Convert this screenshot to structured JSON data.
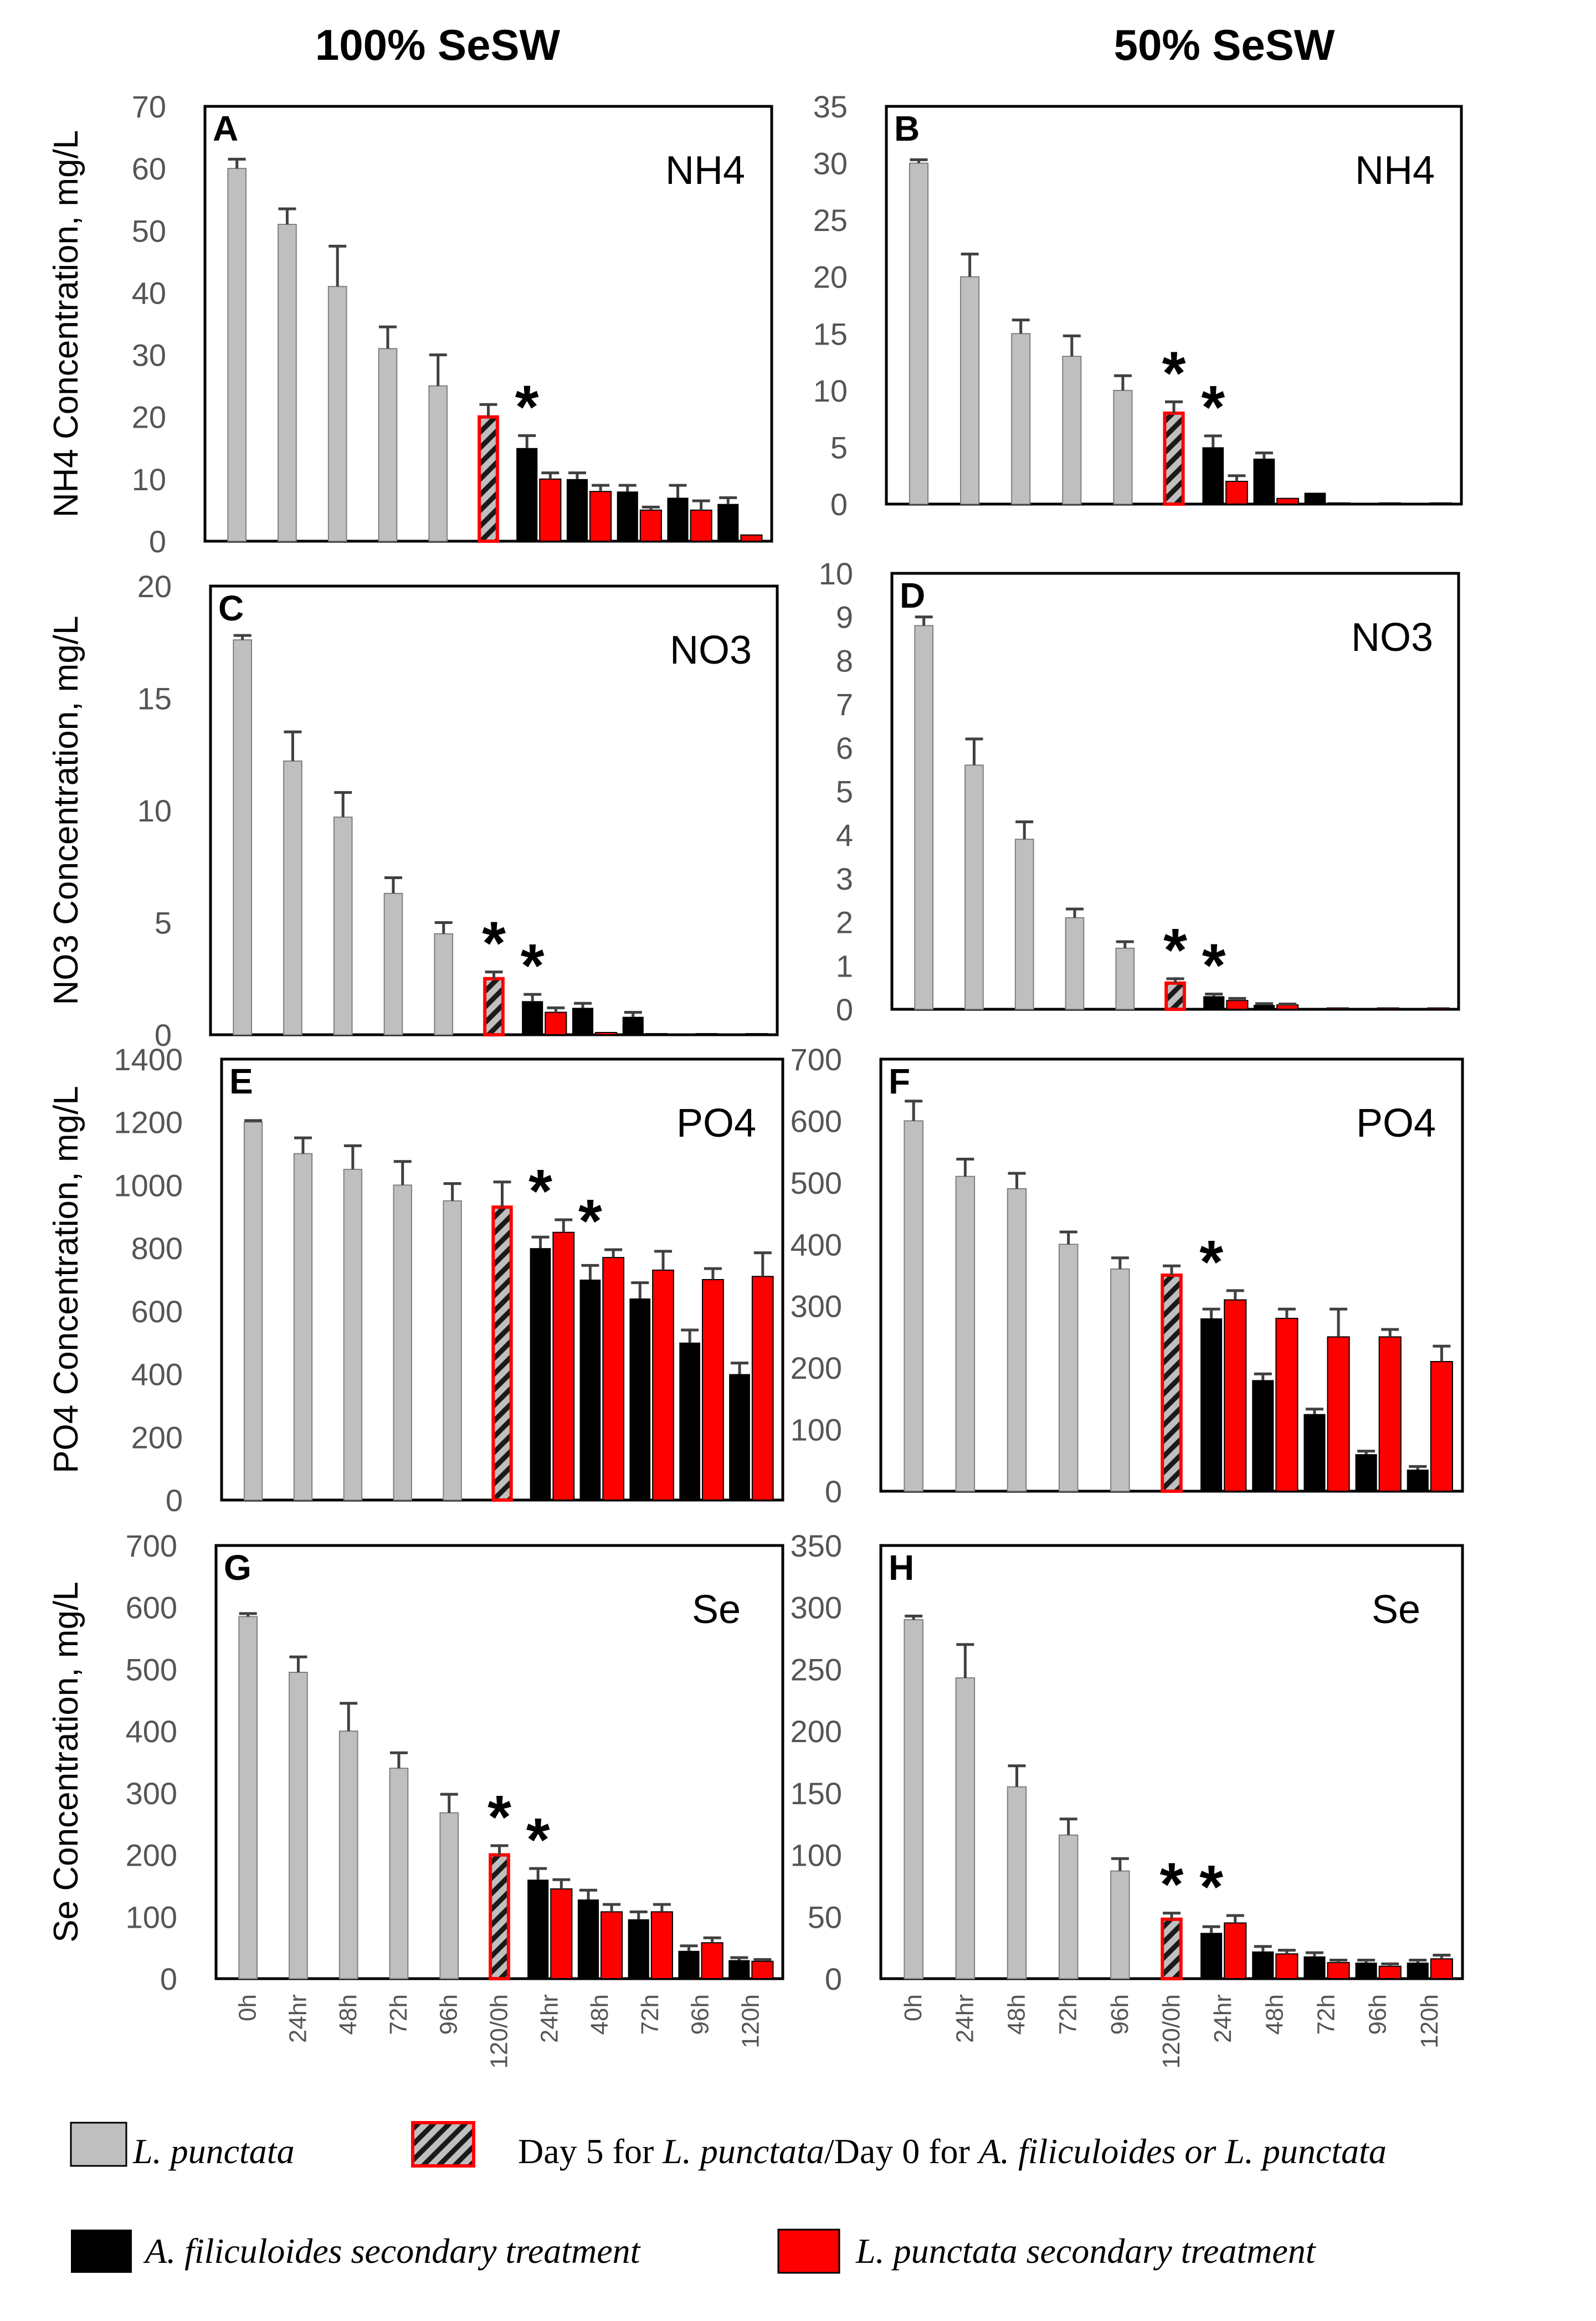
{
  "figure": {
    "column_titles": [
      "100% SeSW",
      "50% SeSW"
    ]
  },
  "legend": {
    "items": [
      {
        "key": "lp",
        "text_italic": "L. punctata",
        "text_rest": ""
      },
      {
        "key": "day5",
        "text_pre": "Day 5 for ",
        "text_italic1": "L. punctata",
        "text_mid": "/Day 0 for ",
        "text_italic2": "A. filiculoides or L. punctata"
      },
      {
        "key": "af",
        "text_italic": "A. filiculoides",
        "text_rest": " secondary treatment"
      },
      {
        "key": "lp2",
        "text_italic": "L. punctata",
        "text_rest": " secondary treatment"
      }
    ]
  },
  "colors": {
    "lp": "#bfbfbf",
    "af": "#000000",
    "lp2": "#ff0000",
    "day5_border": "#ff0000",
    "error_bar": "#404040"
  },
  "x_tick_labels": [
    "0h",
    "24hr",
    "48h",
    "72h",
    "96h",
    "120/0h",
    "24hr",
    "48h",
    "72h",
    "96h",
    "120h"
  ],
  "chart_data": [
    {
      "type": "bar",
      "panel": "A",
      "analyte": "NH4",
      "analyte_sub": "4",
      "analyte_base": "NH",
      "ylabel": "NH4 Concentration, mg/L",
      "ylim": [
        0,
        70
      ],
      "yticks": [
        0,
        10,
        20,
        30,
        40,
        50,
        60,
        70
      ],
      "primary": [
        {
          "v": 60,
          "e": 1.5
        },
        {
          "v": 51,
          "e": 2.5
        },
        {
          "v": 41,
          "e": 6.5
        },
        {
          "v": 31,
          "e": 3.5
        },
        {
          "v": 25,
          "e": 5
        }
      ],
      "day5": {
        "v": 20,
        "e": 2,
        "star": false
      },
      "secondary": [
        {
          "af": {
            "v": 15,
            "e": 2
          },
          "lp": {
            "v": 10,
            "e": 1
          },
          "star": true
        },
        {
          "af": {
            "v": 10,
            "e": 1
          },
          "lp": {
            "v": 8,
            "e": 1
          },
          "star": false
        },
        {
          "af": {
            "v": 8,
            "e": 1
          },
          "lp": {
            "v": 5,
            "e": 0.5
          },
          "star": false
        },
        {
          "af": {
            "v": 7,
            "e": 2
          },
          "lp": {
            "v": 5,
            "e": 1.5
          },
          "star": false
        },
        {
          "af": {
            "v": 6,
            "e": 1
          },
          "lp": {
            "v": 1,
            "e": 0
          },
          "star": false
        }
      ]
    },
    {
      "type": "bar",
      "panel": "B",
      "analyte": "NH4",
      "analyte_sub": "4",
      "analyte_base": "NH",
      "ylabel": "",
      "ylim": [
        0,
        35
      ],
      "yticks": [
        0,
        5,
        10,
        15,
        20,
        25,
        30,
        35
      ],
      "primary": [
        {
          "v": 30,
          "e": 0.3
        },
        {
          "v": 20,
          "e": 2
        },
        {
          "v": 15,
          "e": 1.2
        },
        {
          "v": 13,
          "e": 1.8
        },
        {
          "v": 10,
          "e": 1.3
        }
      ],
      "day5": {
        "v": 8,
        "e": 1,
        "star": true
      },
      "secondary": [
        {
          "af": {
            "v": 5,
            "e": 1
          },
          "lp": {
            "v": 2,
            "e": 0.5
          },
          "star": true
        },
        {
          "af": {
            "v": 4,
            "e": 0.5
          },
          "lp": {
            "v": 0.5,
            "e": 0
          },
          "star": false
        },
        {
          "af": {
            "v": 1,
            "e": 0
          },
          "lp": {
            "v": 0.1,
            "e": 0
          },
          "star": false
        },
        {
          "af": {
            "v": 0.1,
            "e": 0
          },
          "lp": {
            "v": 0.1,
            "e": 0
          },
          "star": false
        },
        {
          "af": {
            "v": 0.1,
            "e": 0
          },
          "lp": {
            "v": 0.1,
            "e": 0
          },
          "star": false
        }
      ]
    },
    {
      "type": "bar",
      "panel": "C",
      "analyte": "NO3",
      "analyte_sub": "3",
      "analyte_base": "NO",
      "ylabel": "NO3 Concentration, mg/L",
      "ylim": [
        0,
        20
      ],
      "yticks": [
        0,
        5,
        10,
        15,
        20
      ],
      "primary": [
        {
          "v": 17.6,
          "e": 0.2
        },
        {
          "v": 12.2,
          "e": 1.3
        },
        {
          "v": 9.7,
          "e": 1.1
        },
        {
          "v": 6.3,
          "e": 0.7
        },
        {
          "v": 4.5,
          "e": 0.5
        }
      ],
      "day5": {
        "v": 2.5,
        "e": 0.3,
        "star": true
      },
      "secondary": [
        {
          "af": {
            "v": 1.5,
            "e": 0.3
          },
          "lp": {
            "v": 1,
            "e": 0.2
          },
          "star": true
        },
        {
          "af": {
            "v": 1.2,
            "e": 0.2
          },
          "lp": {
            "v": 0.1,
            "e": 0
          },
          "star": false
        },
        {
          "af": {
            "v": 0.8,
            "e": 0.2
          },
          "lp": {
            "v": 0.05,
            "e": 0
          },
          "star": false
        },
        {
          "af": {
            "v": 0.05,
            "e": 0
          },
          "lp": {
            "v": 0.05,
            "e": 0
          },
          "star": false
        },
        {
          "af": {
            "v": 0.05,
            "e": 0
          },
          "lp": {
            "v": 0.05,
            "e": 0
          },
          "star": false
        }
      ]
    },
    {
      "type": "bar",
      "panel": "D",
      "analyte": "NO3",
      "analyte_sub": "3",
      "analyte_base": "NO",
      "ylabel": "",
      "ylim": [
        0,
        10
      ],
      "yticks": [
        0,
        1,
        2,
        3,
        4,
        5,
        6,
        7,
        8,
        9,
        10
      ],
      "primary": [
        {
          "v": 8.8,
          "e": 0.2
        },
        {
          "v": 5.6,
          "e": 0.6
        },
        {
          "v": 3.9,
          "e": 0.4
        },
        {
          "v": 2.1,
          "e": 0.2
        },
        {
          "v": 1.4,
          "e": 0.15
        }
      ],
      "day5": {
        "v": 0.6,
        "e": 0.1,
        "star": true
      },
      "secondary": [
        {
          "af": {
            "v": 0.3,
            "e": 0.05
          },
          "lp": {
            "v": 0.2,
            "e": 0.05
          },
          "star": true
        },
        {
          "af": {
            "v": 0.1,
            "e": 0.03
          },
          "lp": {
            "v": 0.1,
            "e": 0.02
          },
          "star": false
        },
        {
          "af": {
            "v": 0.03,
            "e": 0
          },
          "lp": {
            "v": 0.03,
            "e": 0
          },
          "star": false
        },
        {
          "af": {
            "v": 0.03,
            "e": 0
          },
          "lp": {
            "v": 0.03,
            "e": 0
          },
          "star": false
        },
        {
          "af": {
            "v": 0.03,
            "e": 0
          },
          "lp": {
            "v": 0.03,
            "e": 0
          },
          "star": false
        }
      ]
    },
    {
      "type": "bar",
      "panel": "E",
      "analyte": "PO4",
      "analyte_sub": "4",
      "analyte_base": "PO",
      "ylabel": "PO4 Concentration, mg/L",
      "ylim": [
        0,
        1400
      ],
      "yticks": [
        0,
        200,
        400,
        600,
        800,
        1000,
        1200,
        1400
      ],
      "primary": [
        {
          "v": 1200,
          "e": 5
        },
        {
          "v": 1100,
          "e": 50
        },
        {
          "v": 1050,
          "e": 75
        },
        {
          "v": 1000,
          "e": 75
        },
        {
          "v": 950,
          "e": 55
        }
      ],
      "day5": {
        "v": 930,
        "e": 80,
        "star": false
      },
      "secondary": [
        {
          "af": {
            "v": 800,
            "e": 35
          },
          "lp": {
            "v": 850,
            "e": 40
          },
          "star": true
        },
        {
          "af": {
            "v": 700,
            "e": 45
          },
          "lp": {
            "v": 770,
            "e": 25
          },
          "star": true
        },
        {
          "af": {
            "v": 640,
            "e": 50
          },
          "lp": {
            "v": 730,
            "e": 60
          },
          "star": false
        },
        {
          "af": {
            "v": 500,
            "e": 40
          },
          "lp": {
            "v": 700,
            "e": 35
          },
          "star": false
        },
        {
          "af": {
            "v": 400,
            "e": 35
          },
          "lp": {
            "v": 710,
            "e": 75
          },
          "star": false
        }
      ]
    },
    {
      "type": "bar",
      "panel": "F",
      "analyte": "PO4",
      "analyte_sub": "4",
      "analyte_base": "PO",
      "ylabel": "",
      "ylim": [
        0,
        700
      ],
      "yticks": [
        0,
        100,
        200,
        300,
        400,
        500,
        600,
        700
      ],
      "primary": [
        {
          "v": 600,
          "e": 32
        },
        {
          "v": 510,
          "e": 28
        },
        {
          "v": 490,
          "e": 25
        },
        {
          "v": 400,
          "e": 20
        },
        {
          "v": 360,
          "e": 18
        }
      ],
      "day5": {
        "v": 350,
        "e": 15,
        "star": false
      },
      "secondary": [
        {
          "af": {
            "v": 280,
            "e": 15
          },
          "lp": {
            "v": 310,
            "e": 15
          },
          "star": true
        },
        {
          "af": {
            "v": 180,
            "e": 10
          },
          "lp": {
            "v": 280,
            "e": 15
          },
          "star": false
        },
        {
          "af": {
            "v": 125,
            "e": 8
          },
          "lp": {
            "v": 250,
            "e": 45
          },
          "star": false
        },
        {
          "af": {
            "v": 60,
            "e": 5
          },
          "lp": {
            "v": 250,
            "e": 12
          },
          "star": false
        },
        {
          "af": {
            "v": 35,
            "e": 5
          },
          "lp": {
            "v": 210,
            "e": 25
          },
          "star": false
        }
      ]
    },
    {
      "type": "bar",
      "panel": "G",
      "analyte": "Se",
      "analyte_sub": "",
      "analyte_base": "Se",
      "ylabel": "Se Concentration, mg/L",
      "ylim": [
        0,
        700
      ],
      "yticks": [
        0,
        100,
        200,
        300,
        400,
        500,
        600,
        700
      ],
      "primary": [
        {
          "v": 585,
          "e": 5
        },
        {
          "v": 495,
          "e": 25
        },
        {
          "v": 400,
          "e": 45
        },
        {
          "v": 340,
          "e": 25
        },
        {
          "v": 268,
          "e": 30
        }
      ],
      "day5": {
        "v": 200,
        "e": 15,
        "star": true
      },
      "secondary": [
        {
          "af": {
            "v": 160,
            "e": 18
          },
          "lp": {
            "v": 145,
            "e": 15
          },
          "star": true
        },
        {
          "af": {
            "v": 128,
            "e": 15
          },
          "lp": {
            "v": 108,
            "e": 12
          },
          "star": false
        },
        {
          "af": {
            "v": 96,
            "e": 12
          },
          "lp": {
            "v": 108,
            "e": 12
          },
          "star": false
        },
        {
          "af": {
            "v": 45,
            "e": 8
          },
          "lp": {
            "v": 58,
            "e": 8
          },
          "star": false
        },
        {
          "af": {
            "v": 30,
            "e": 4
          },
          "lp": {
            "v": 28,
            "e": 3
          },
          "star": false
        }
      ]
    },
    {
      "type": "bar",
      "panel": "H",
      "analyte": "Se",
      "analyte_sub": "",
      "analyte_base": "Se",
      "ylabel": "",
      "ylim": [
        0,
        350
      ],
      "yticks": [
        0,
        50,
        100,
        150,
        200,
        250,
        300,
        350
      ],
      "primary": [
        {
          "v": 290,
          "e": 3
        },
        {
          "v": 243,
          "e": 27
        },
        {
          "v": 155,
          "e": 17
        },
        {
          "v": 116,
          "e": 13
        },
        {
          "v": 87,
          "e": 10
        }
      ],
      "day5": {
        "v": 48,
        "e": 5,
        "star": true
      },
      "secondary": [
        {
          "af": {
            "v": 37,
            "e": 5
          },
          "lp": {
            "v": 45,
            "e": 6
          },
          "star": true
        },
        {
          "af": {
            "v": 22,
            "e": 4
          },
          "lp": {
            "v": 20,
            "e": 3
          },
          "star": false
        },
        {
          "af": {
            "v": 18,
            "e": 3
          },
          "lp": {
            "v": 13,
            "e": 2
          },
          "star": false
        },
        {
          "af": {
            "v": 13,
            "e": 2
          },
          "lp": {
            "v": 10,
            "e": 2
          },
          "star": false
        },
        {
          "af": {
            "v": 13,
            "e": 2
          },
          "lp": {
            "v": 16,
            "e": 3
          },
          "star": false
        }
      ]
    }
  ]
}
